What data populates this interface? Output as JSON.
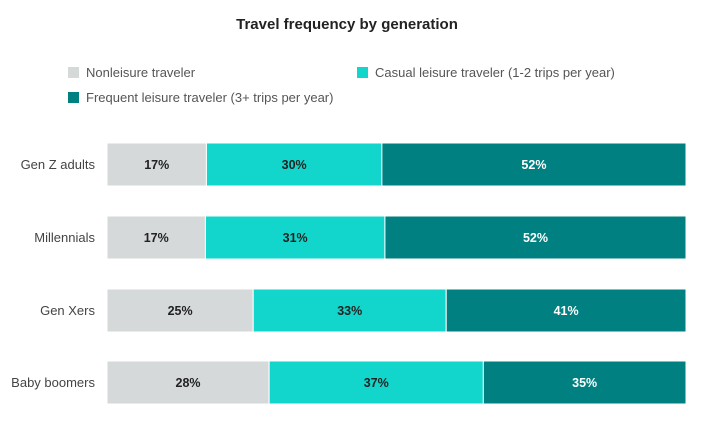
{
  "chart_data": {
    "type": "bar",
    "orientation": "horizontal",
    "stacked": true,
    "title": "Travel frequency by generation",
    "categories": [
      "Gen Z adults",
      "Millennials",
      "Gen Xers",
      "Baby boomers"
    ],
    "series": [
      {
        "name": "Nonleisure traveler",
        "color": "#d6d9da",
        "label_color": "#222222",
        "values": [
          17,
          17,
          25,
          28
        ]
      },
      {
        "name": "Casual leisure traveler (1-2 trips per year)",
        "color": "#12d6cc",
        "label_color": "#222222",
        "values": [
          30,
          31,
          33,
          37
        ]
      },
      {
        "name": "Frequent leisure traveler (3+ trips per year)",
        "color": "#008080",
        "label_color": "#ffffff",
        "values": [
          52,
          52,
          41,
          35
        ]
      }
    ],
    "value_suffix": "%",
    "legend_position": "top",
    "grid": false
  }
}
